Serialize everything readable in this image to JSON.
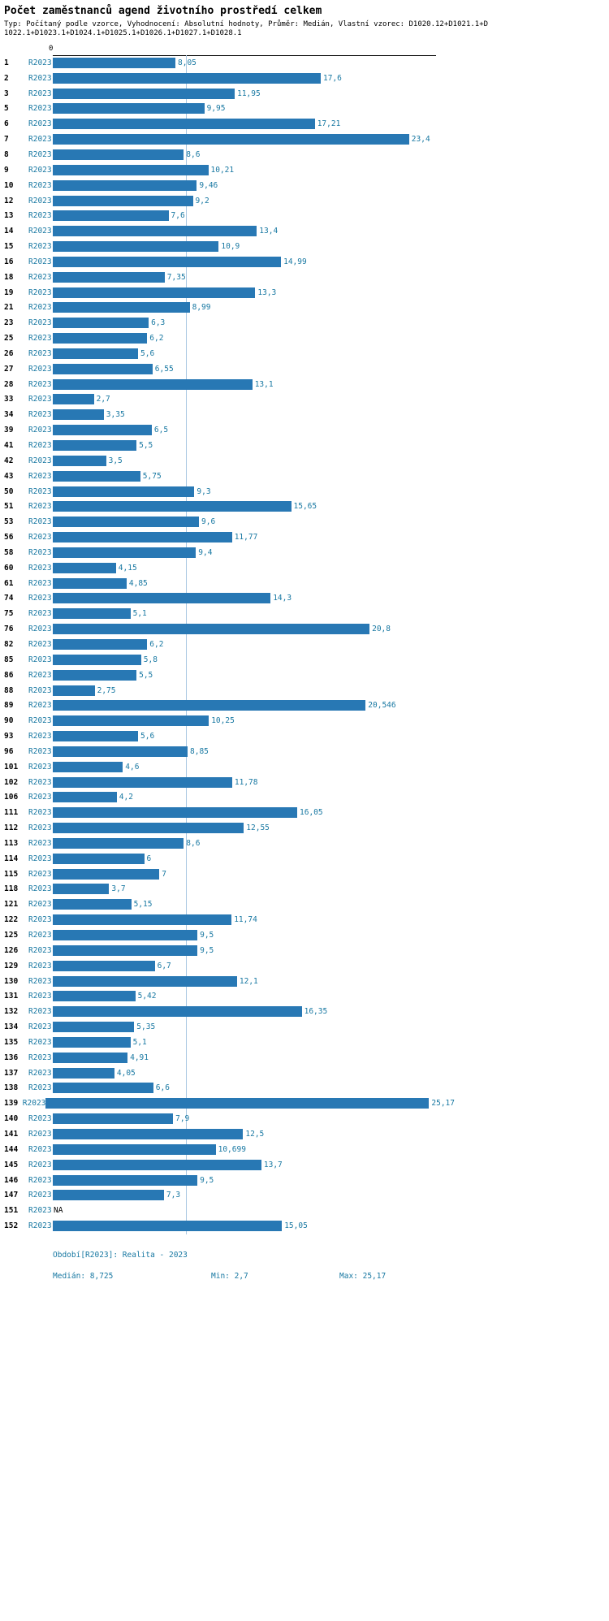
{
  "title": "Počet zaměstnanců agend životního prostředí celkem",
  "subtitle_line1": "Typ: Počítaný podle vzorce, Vyhodnocení: Absolutní hodnoty, Průměr: Medián, Vlastní vzorec: D1020.12+D1021.1+D",
  "subtitle_line2": "1022.1+D1023.1+D1024.1+D1025.1+D1026.1+D1027.1+D1028.1",
  "axis": {
    "zero_label": "0",
    "median_value": 8.725
  },
  "colors": {
    "bar": "#2878b4",
    "label_text": "#1878a2",
    "median_line": "#a9c7e2"
  },
  "chart_data": {
    "type": "bar",
    "orientation": "horizontal",
    "title": "Počet zaměstnanců agend životního prostředí celkem",
    "series_label": "R2023",
    "xlim": [
      0,
      25.17
    ],
    "grid": false,
    "median_reference_line": 8.725,
    "categories": [
      "1",
      "2",
      "3",
      "5",
      "6",
      "7",
      "8",
      "9",
      "10",
      "12",
      "13",
      "14",
      "15",
      "16",
      "18",
      "19",
      "21",
      "23",
      "25",
      "26",
      "27",
      "28",
      "33",
      "34",
      "39",
      "41",
      "42",
      "43",
      "50",
      "51",
      "53",
      "56",
      "58",
      "60",
      "61",
      "74",
      "75",
      "76",
      "82",
      "85",
      "86",
      "88",
      "89",
      "90",
      "93",
      "96",
      "101",
      "102",
      "106",
      "111",
      "112",
      "113",
      "114",
      "115",
      "118",
      "121",
      "122",
      "125",
      "126",
      "129",
      "130",
      "131",
      "132",
      "134",
      "135",
      "136",
      "137",
      "138",
      "139",
      "140",
      "141",
      "144",
      "145",
      "146",
      "147",
      "151",
      "152"
    ],
    "values": [
      8.05,
      17.6,
      11.95,
      9.95,
      17.21,
      23.4,
      8.6,
      10.21,
      9.46,
      9.2,
      7.6,
      13.4,
      10.9,
      14.99,
      7.35,
      13.3,
      8.99,
      6.3,
      6.2,
      5.6,
      6.55,
      13.1,
      2.7,
      3.35,
      6.5,
      5.5,
      3.5,
      5.75,
      9.3,
      15.65,
      9.6,
      11.77,
      9.4,
      4.15,
      4.85,
      14.3,
      5.1,
      20.8,
      6.2,
      5.8,
      5.5,
      2.75,
      20.546,
      10.25,
      5.6,
      8.85,
      4.6,
      11.78,
      4.2,
      16.05,
      12.55,
      8.6,
      6,
      7,
      3.7,
      5.15,
      11.74,
      9.5,
      9.5,
      6.7,
      12.1,
      5.42,
      16.35,
      5.35,
      5.1,
      4.91,
      4.05,
      6.6,
      25.17,
      7.9,
      12.5,
      10.699,
      13.7,
      9.5,
      7.3,
      null,
      15.05
    ],
    "value_labels": [
      "8,05",
      "17,6",
      "11,95",
      "9,95",
      "17,21",
      "23,4",
      "8,6",
      "10,21",
      "9,46",
      "9,2",
      "7,6",
      "13,4",
      "10,9",
      "14,99",
      "7,35",
      "13,3",
      "8,99",
      "6,3",
      "6,2",
      "5,6",
      "6,55",
      "13,1",
      "2,7",
      "3,35",
      "6,5",
      "5,5",
      "3,5",
      "5,75",
      "9,3",
      "15,65",
      "9,6",
      "11,77",
      "9,4",
      "4,15",
      "4,85",
      "14,3",
      "5,1",
      "20,8",
      "6,2",
      "5,8",
      "5,5",
      "2,75",
      "20,546",
      "10,25",
      "5,6",
      "8,85",
      "4,6",
      "11,78",
      "4,2",
      "16,05",
      "12,55",
      "8,6",
      "6",
      "7",
      "3,7",
      "5,15",
      "11,74",
      "9,5",
      "9,5",
      "6,7",
      "12,1",
      "5,42",
      "16,35",
      "5,35",
      "5,1",
      "4,91",
      "4,05",
      "6,6",
      "25,17",
      "7,9",
      "12,5",
      "10,699",
      "13,7",
      "9,5",
      "7,3",
      "NA",
      "15,05"
    ]
  },
  "footer": {
    "period": "Období[R2023]: Realita - 2023",
    "median": "Medián: 8,725",
    "min": "Min: 2,7",
    "max": "Max: 25,17"
  }
}
